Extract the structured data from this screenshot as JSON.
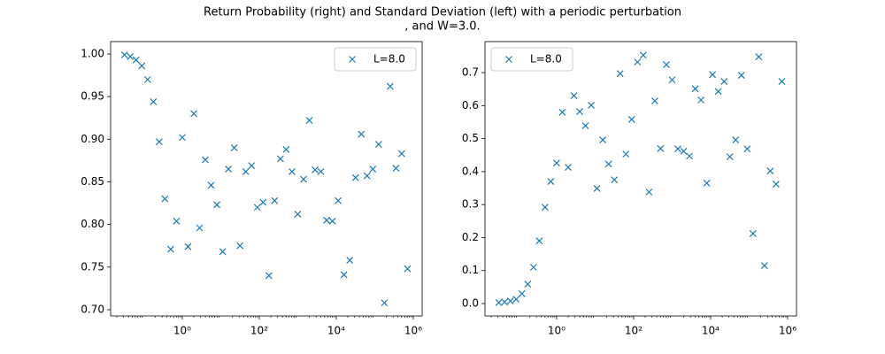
{
  "title": [
    "Return Probability (right) and Standard Deviation (left) with a periodic perturbation",
    ", and W=3.0."
  ],
  "chart_data": [
    {
      "type": "scatter",
      "xscale": "log",
      "legend": "upper right",
      "marker": "x",
      "x": [
        0.0316,
        0.0447,
        0.0631,
        0.0891,
        0.126,
        0.178,
        0.251,
        0.355,
        0.501,
        0.708,
        1,
        1.41,
        2.0,
        2.82,
        3.98,
        5.62,
        7.94,
        11.2,
        15.8,
        22.4,
        31.6,
        44.7,
        63.1,
        89.1,
        126,
        178,
        251,
        355,
        501,
        708,
        1000,
        1413,
        1995,
        2818,
        3981,
        5623,
        7943,
        11220,
        15849,
        22387,
        31623,
        44668,
        63096,
        89125,
        125893,
        177828,
        251189,
        354813,
        501187,
        707946
      ],
      "series": [
        {
          "name": "L=8.0",
          "color": "#1f77b4",
          "values": [
            0.999,
            0.997,
            0.993,
            0.986,
            0.97,
            0.944,
            0.897,
            0.83,
            0.771,
            0.804,
            0.902,
            0.774,
            0.93,
            0.796,
            0.876,
            0.846,
            0.823,
            0.768,
            0.865,
            0.89,
            0.775,
            0.862,
            0.869,
            0.82,
            0.826,
            0.74,
            0.828,
            0.877,
            0.888,
            0.862,
            0.812,
            0.853,
            0.922,
            0.864,
            0.862,
            0.805,
            0.804,
            0.828,
            0.741,
            0.758,
            0.855,
            0.906,
            0.857,
            0.865,
            0.894,
            0.708,
            0.962,
            0.866,
            0.883,
            0.748
          ]
        }
      ],
      "xlim": [
        0.0138,
        1700000
      ],
      "xticks": [
        {
          "value": 1,
          "label": "10⁰"
        },
        {
          "value": 100,
          "label": "10²"
        },
        {
          "value": 10000,
          "label": "10⁴"
        },
        {
          "value": 1000000,
          "label": "10⁶"
        }
      ],
      "ylim": [
        0.6927,
        1.0145
      ],
      "yticks": [
        {
          "value": 0.7,
          "label": "0.70"
        },
        0.75,
        {
          "value": 0.8,
          "label": "0.80"
        },
        0.85,
        {
          "value": 0.9,
          "label": "0.90"
        },
        0.95,
        {
          "value": 1.0,
          "label": "1.00"
        }
      ]
    },
    {
      "type": "scatter",
      "xscale": "log",
      "legend": "upper left",
      "marker": "x",
      "x": [
        0.0316,
        0.0447,
        0.0631,
        0.0891,
        0.126,
        0.178,
        0.251,
        0.355,
        0.501,
        0.708,
        1,
        1.41,
        2.0,
        2.82,
        3.98,
        5.62,
        7.94,
        11.2,
        15.8,
        22.4,
        31.6,
        44.7,
        63.1,
        89.1,
        126,
        178,
        251,
        355,
        501,
        708,
        1000,
        1413,
        1995,
        2818,
        3981,
        5623,
        7943,
        11220,
        15849,
        22387,
        31623,
        44668,
        63096,
        89125,
        125893,
        177828,
        251189,
        354813,
        501187,
        707946
      ],
      "series": [
        {
          "name": "L=8.0",
          "color": "#1f77b4",
          "values": [
            0.003,
            0.005,
            0.008,
            0.013,
            0.03,
            0.059,
            0.11,
            0.19,
            0.292,
            0.37,
            0.426,
            0.58,
            0.413,
            0.63,
            0.582,
            0.539,
            0.601,
            0.349,
            0.496,
            0.423,
            0.375,
            0.697,
            0.453,
            0.558,
            0.732,
            0.753,
            0.338,
            0.614,
            0.47,
            0.724,
            0.678,
            0.469,
            0.462,
            0.447,
            0.651,
            0.617,
            0.365,
            0.694,
            0.643,
            0.673,
            0.445,
            0.496,
            0.692,
            0.469,
            0.212,
            0.748,
            0.115,
            0.402,
            0.362,
            0.673
          ]
        }
      ],
      "xlim": [
        0.0138,
        1700000
      ],
      "xticks": [
        {
          "value": 1,
          "label": "10⁰"
        },
        {
          "value": 100,
          "label": "10²"
        },
        {
          "value": 10000,
          "label": "10⁴"
        },
        {
          "value": 1000000,
          "label": "10⁶"
        }
      ],
      "ylim": [
        -0.0375,
        0.794
      ],
      "yticks": [
        {
          "value": 0.0,
          "label": "0.0"
        },
        0.1,
        0.2,
        0.3,
        0.4,
        0.5,
        0.6,
        0.7
      ]
    }
  ]
}
